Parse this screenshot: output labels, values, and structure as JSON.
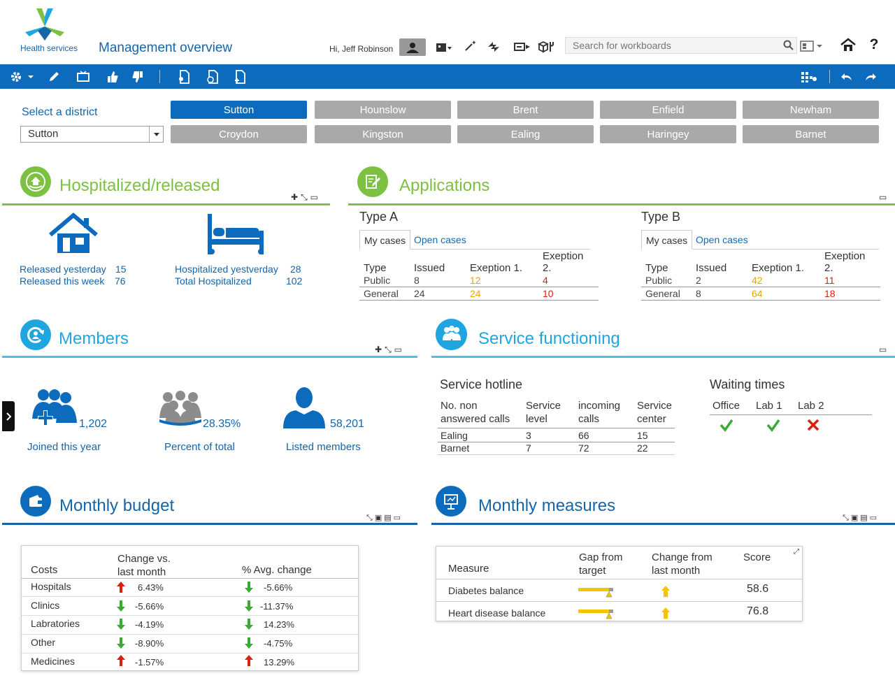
{
  "header": {
    "logo_text": "Health services",
    "title": "Management overview",
    "greeting": "Hi, Jeff Robinson",
    "search_placeholder": "Search for workboards"
  },
  "district": {
    "label": "Select a district",
    "selected": "Sutton",
    "buttons_row1": [
      "Sutton",
      "Hounslow",
      "Brent",
      "Enfield",
      "Newham"
    ],
    "buttons_row2": [
      "Croydon",
      "Kingston",
      "Ealing",
      "Haringey",
      "Barnet"
    ]
  },
  "hospitalized": {
    "title": "Hospitalized/released",
    "released_yesterday_label": "Released yesterday",
    "released_yesterday": "15",
    "released_week_label": "Released this week",
    "released_week": "76",
    "hosp_yesterday_label": "Hospitalized yestverday",
    "hosp_yesterday": "28",
    "total_label": "Total Hospitalized",
    "total": "102"
  },
  "applications": {
    "title": "Applications",
    "tab_my": "My cases",
    "tab_open": "Open cases",
    "headers": [
      "Type",
      "Issued",
      "Exeption 1.",
      "Exeption 2."
    ],
    "type_a": {
      "title": "Type A",
      "rows": [
        {
          "type": "Public",
          "issued": "8",
          "e1": "12",
          "e2": "4"
        },
        {
          "type": "General",
          "issued": "24",
          "e1": "24",
          "e2": "10"
        }
      ]
    },
    "type_b": {
      "title": "Type B",
      "rows": [
        {
          "type": "Public",
          "issued": "2",
          "e1": "42",
          "e2": "11"
        },
        {
          "type": "General",
          "issued": "8",
          "e1": "64",
          "e2": "18"
        }
      ]
    }
  },
  "members": {
    "title": "Members",
    "joined": "1,202",
    "joined_label": "Joined this year",
    "percent": "28.35%",
    "percent_label": "Percent of total",
    "listed": "58,201",
    "listed_label": "Listed members"
  },
  "service": {
    "title": "Service functioning",
    "hotline_title": "Service hotline",
    "h_col1a": "No. non",
    "h_col1b": "answered calls",
    "h_col2a": "Service",
    "h_col2b": "level",
    "h_col3a": "incoming",
    "h_col3b": "calls",
    "h_col4a": "Service",
    "h_col4b": "center",
    "rows": [
      {
        "name": "Ealing",
        "level": "3",
        "calls": "66",
        "center": "15"
      },
      {
        "name": "Barnet",
        "level": "7",
        "calls": "72",
        "center": "22"
      }
    ],
    "waiting_title": "Waiting times",
    "waiting_cols": [
      "Office",
      "Lab 1",
      "Lab 2"
    ]
  },
  "budget": {
    "title": "Monthly budget",
    "h_costs": "Costs",
    "h_change_a": "Change  vs.",
    "h_change_b": "last month",
    "h_avg": "% Avg. change",
    "rows": [
      {
        "name": "Hospitals",
        "change": "6.43%",
        "avg": "-5.66%"
      },
      {
        "name": "Clinics",
        "change": "-5.66%",
        "avg": "-11.37%"
      },
      {
        "name": "Labratories",
        "change": "-4.19%",
        "avg": "14.23%"
      },
      {
        "name": "Other",
        "change": "-8.90%",
        "avg": "-4.75%"
      },
      {
        "name": "Medicines",
        "change": "-1.57%",
        "avg": "13.29%"
      }
    ]
  },
  "measures": {
    "title": "Monthly measures",
    "h_measure": "Measure",
    "h_gap_a": "Gap from",
    "h_gap_b": "target",
    "h_change_a": "Change from",
    "h_change_b": "last month",
    "h_score": "Score",
    "rows": [
      {
        "name": "Diabetes balance",
        "score": "58.6"
      },
      {
        "name": "Heart disease balance",
        "score": "76.8"
      }
    ]
  }
}
